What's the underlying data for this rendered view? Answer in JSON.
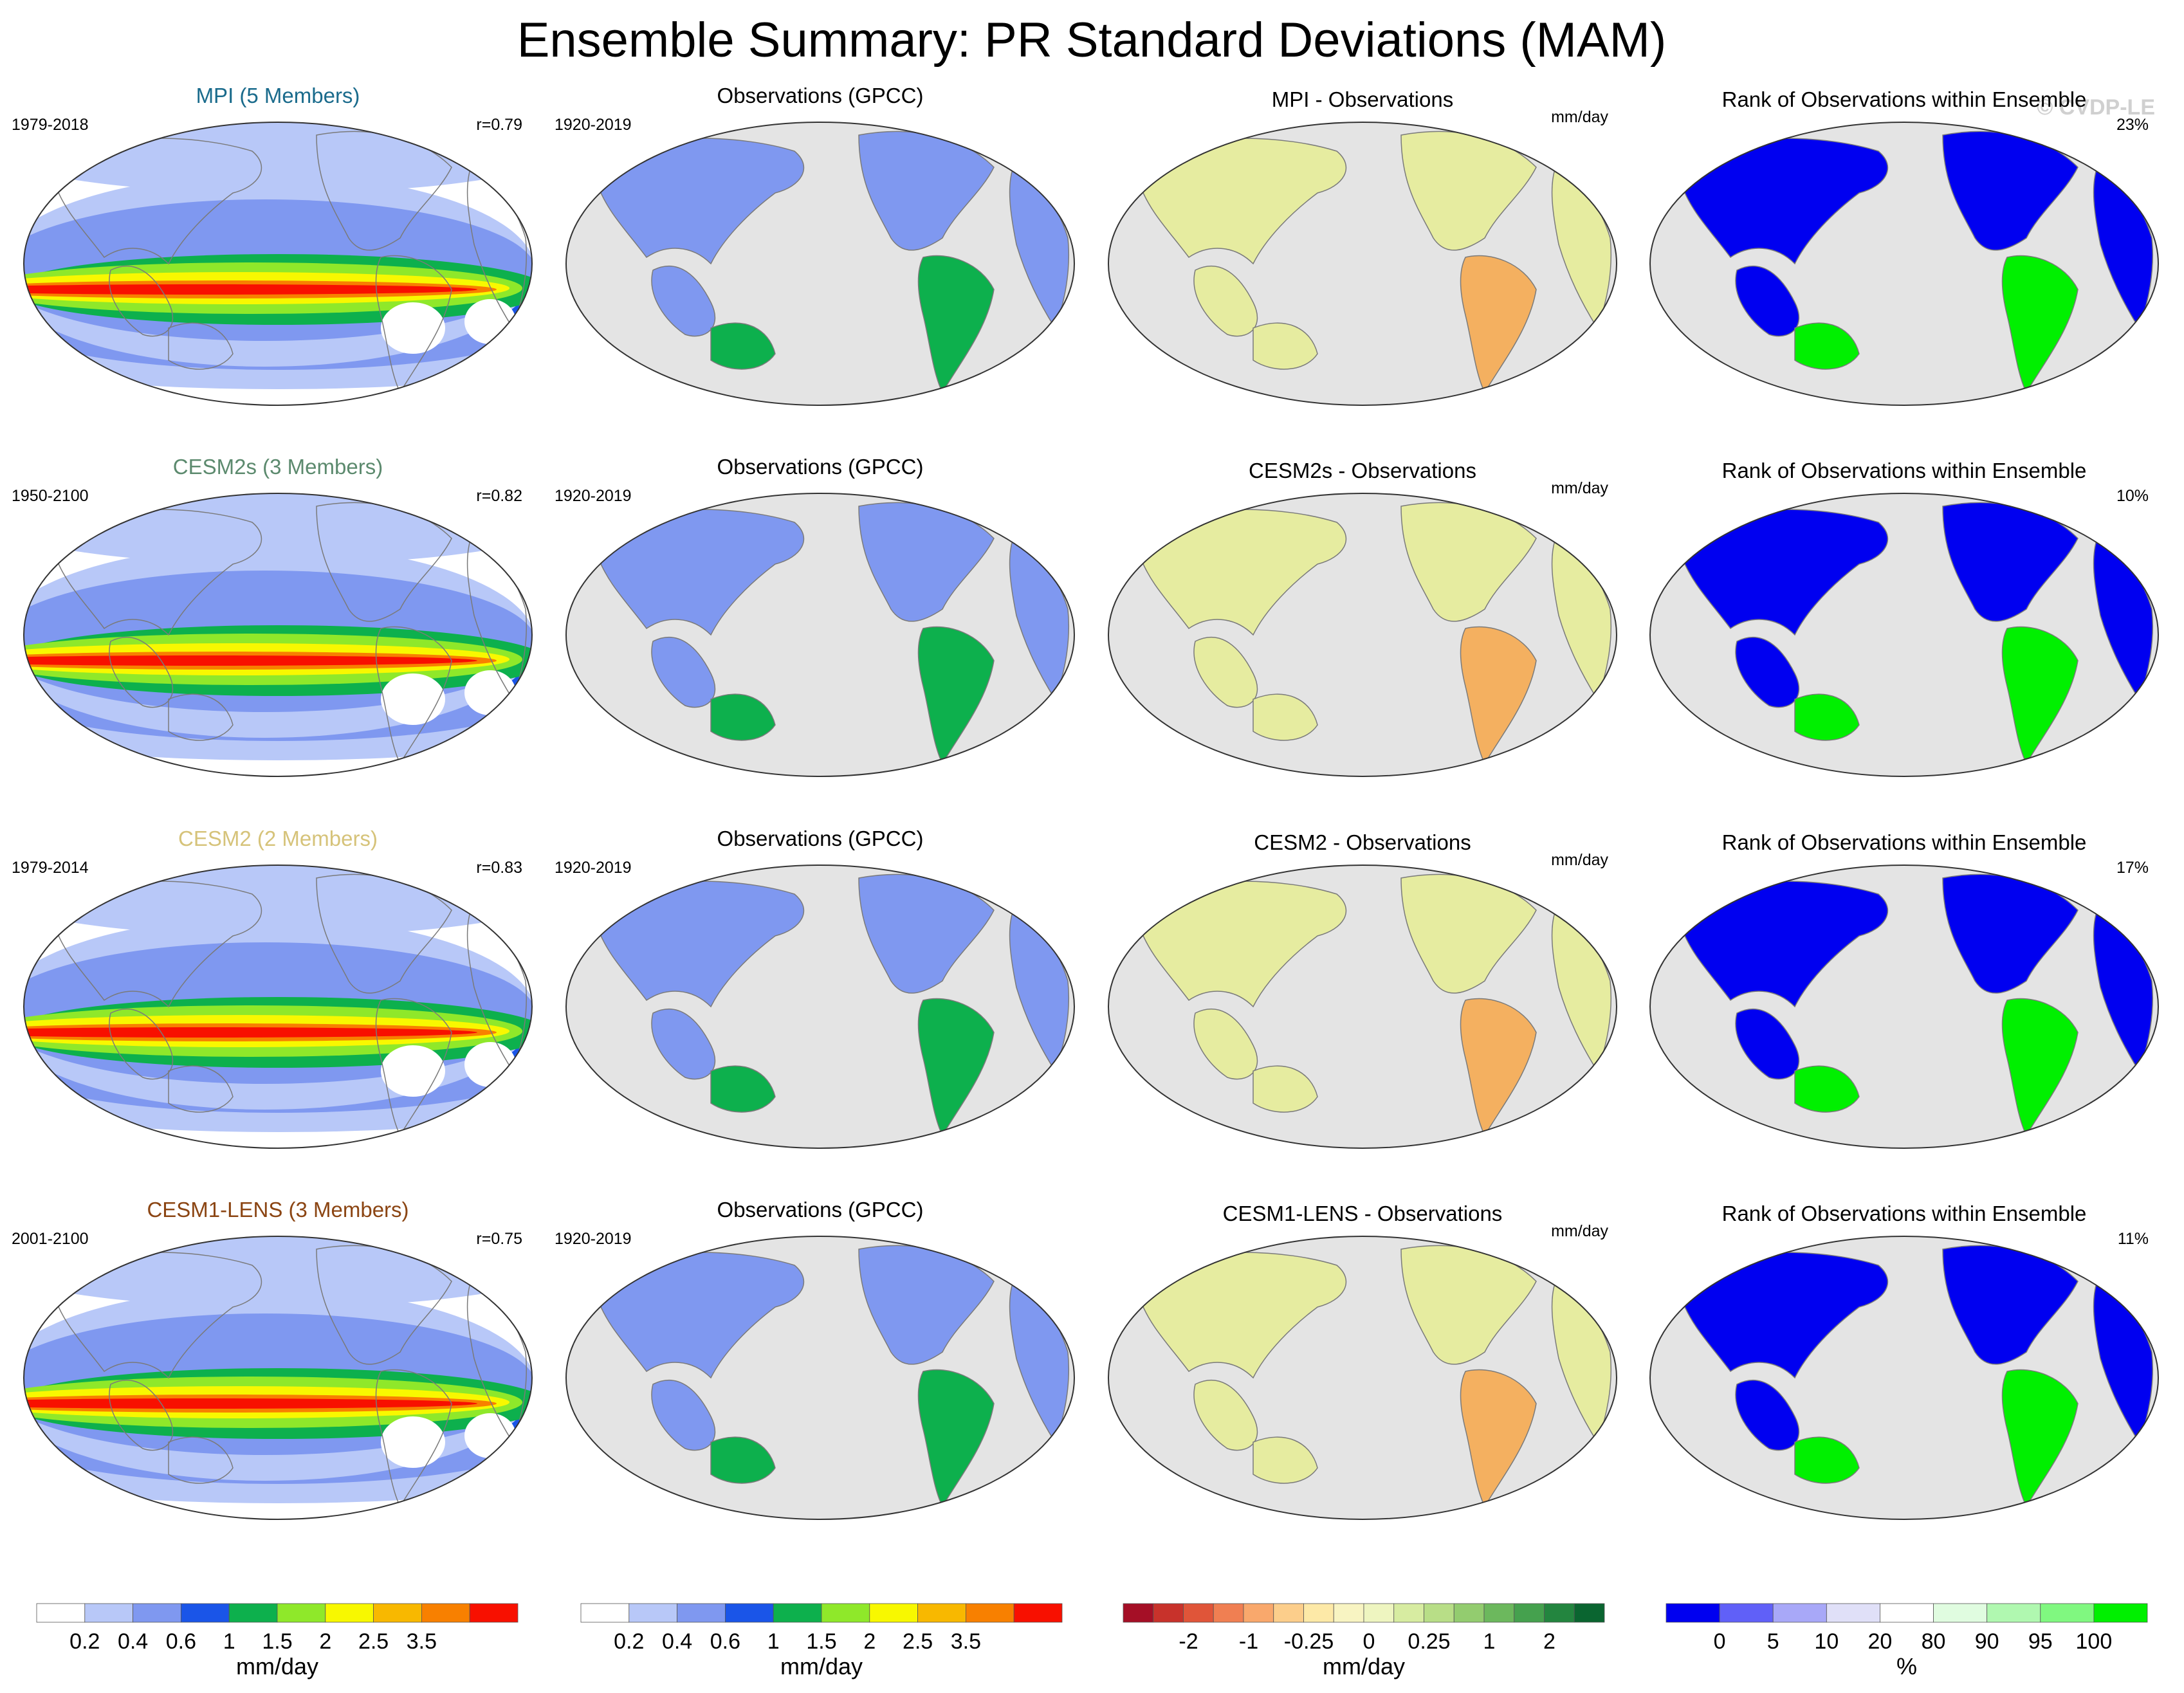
{
  "figure": {
    "title": "Ensemble Summary: PR Standard Deviations (MAM)",
    "watermark": "© CVDP-LE"
  },
  "colors": {
    "ocean": "#e4e4e4",
    "land_gray": "#cfcfcf",
    "coast": "#7a7a7a",
    "outline": "#333333"
  },
  "rows": [
    {
      "model_label": "MPI (5 Members)",
      "model_color": "#1a6b8c",
      "model_years": "1979-2018",
      "corr": "r=0.79",
      "obs_label": "Observations (GPCC)",
      "obs_years": "1920-2019",
      "diff_label": "MPI - Observations",
      "diff_units": "mm/day",
      "rank_label": "Rank of Observations within Ensemble",
      "rank_pct": "23%"
    },
    {
      "model_label": "CESM2s (3 Members)",
      "model_color": "#5c8a6e",
      "model_years": "1950-2100",
      "corr": "r=0.82",
      "obs_label": "Observations (GPCC)",
      "obs_years": "1920-2019",
      "diff_label": "CESM2s - Observations",
      "diff_units": "mm/day",
      "rank_label": "Rank of Observations within Ensemble",
      "rank_pct": "10%"
    },
    {
      "model_label": "CESM2 (2 Members)",
      "model_color": "#d6c37a",
      "model_years": "1979-2014",
      "corr": "r=0.83",
      "obs_label": "Observations (GPCC)",
      "obs_years": "1920-2019",
      "diff_label": "CESM2 - Observations",
      "diff_units": "mm/day",
      "rank_label": "Rank of Observations within Ensemble",
      "rank_pct": "17%"
    },
    {
      "model_label": "CESM1-LENS (3 Members)",
      "model_color": "#8b4513",
      "model_years": "2001-2100",
      "corr": "r=0.75",
      "obs_label": "Observations (GPCC)",
      "obs_years": "1920-2019",
      "diff_label": "CESM1-LENS - Observations",
      "diff_units": "mm/day",
      "rank_label": "Rank of Observations within Ensemble",
      "rank_pct": "11%"
    }
  ],
  "colorbars": [
    {
      "name": "model-sd",
      "unit": "mm/day",
      "colors": [
        "#ffffff",
        "#b8c8f8",
        "#7f98f0",
        "#1a55e8",
        "#0db04d",
        "#8fe82a",
        "#f8f800",
        "#f8b800",
        "#f88000",
        "#f81000"
      ],
      "ticks": [
        "0.2",
        "0.4",
        "0.6",
        "1",
        "1.5",
        "2",
        "2.5",
        "3.5"
      ]
    },
    {
      "name": "obs-sd",
      "unit": "mm/day",
      "colors": [
        "#ffffff",
        "#b8c8f8",
        "#7f98f0",
        "#1a55e8",
        "#0db04d",
        "#8fe82a",
        "#f8f800",
        "#f8b800",
        "#f88000",
        "#f81000"
      ],
      "ticks": [
        "0.2",
        "0.4",
        "0.6",
        "1",
        "1.5",
        "2",
        "2.5",
        "3.5"
      ]
    },
    {
      "name": "difference",
      "unit": "mm/day",
      "colors": [
        "#a50f26",
        "#c8322b",
        "#e05539",
        "#f07f52",
        "#f9a86c",
        "#fcce8b",
        "#fde9a7",
        "#f8f4c2",
        "#eef5c0",
        "#d7eca1",
        "#b8de87",
        "#93cc6f",
        "#6cb85d",
        "#45a14e",
        "#23853f",
        "#0a6530"
      ],
      "ticks": [
        "-2",
        "-1",
        "-0.25",
        "0",
        "0.25",
        "1",
        "2"
      ]
    },
    {
      "name": "rank",
      "unit": "%",
      "colors": [
        "#0000f0",
        "#6060f8",
        "#a8a8f8",
        "#e0e0f8",
        "#ffffff",
        "#e0fce0",
        "#b0f8b0",
        "#80f880",
        "#00f000"
      ],
      "ticks": [
        "0",
        "5",
        "10",
        "20",
        "80",
        "90",
        "95",
        "100"
      ]
    }
  ],
  "chart_data": [
    {
      "type": "heatmap",
      "panel": "model-sd",
      "title": "Ensemble Summary: PR Standard Deviations (MAM)",
      "xlabel": "",
      "ylabel": "",
      "projection": "Robinson, centered on Pacific",
      "levels_mm_per_day": [
        0.2,
        0.4,
        0.6,
        1,
        1.5,
        2,
        2.5,
        3.5
      ],
      "series": [
        {
          "name": "MPI (5 Members)",
          "pattern_corr": 0.79
        },
        {
          "name": "CESM2s (3 Members)",
          "pattern_corr": 0.82
        },
        {
          "name": "CESM2 (2 Members)",
          "pattern_corr": 0.83
        },
        {
          "name": "CESM1-LENS (3 Members)",
          "pattern_corr": 0.75
        }
      ]
    },
    {
      "type": "heatmap",
      "panel": "difference",
      "levels_mm_per_day": [
        -2,
        -1,
        -0.25,
        0,
        0.25,
        1,
        2
      ]
    },
    {
      "type": "heatmap",
      "panel": "rank",
      "levels_percent": [
        0,
        5,
        10,
        20,
        80,
        90,
        95,
        100
      ],
      "series": [
        {
          "name": "MPI",
          "percent": 23
        },
        {
          "name": "CESM2s",
          "percent": 10
        },
        {
          "name": "CESM2",
          "percent": 17
        },
        {
          "name": "CESM1-LENS",
          "percent": 11
        }
      ]
    }
  ]
}
